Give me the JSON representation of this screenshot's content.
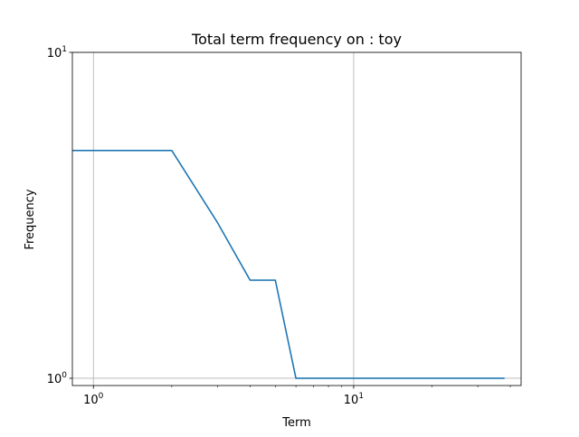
{
  "chart_data": {
    "type": "line",
    "title": "Total term frequency on : toy",
    "xlabel": "Term",
    "ylabel": "Frequency",
    "xscale": "log",
    "yscale": "log",
    "xlim": [
      0.83,
      44
    ],
    "ylim": [
      0.95,
      10
    ],
    "grid": true,
    "x_ticks": [
      {
        "value": 1,
        "base": "10",
        "exp": "0"
      },
      {
        "value": 10,
        "base": "10",
        "exp": "1"
      }
    ],
    "y_ticks": [
      {
        "value": 1,
        "base": "10",
        "exp": "0"
      },
      {
        "value": 10,
        "base": "10",
        "exp": "1"
      }
    ],
    "x": [
      0,
      1,
      2,
      3,
      4,
      5,
      6,
      7,
      8,
      9,
      10,
      11,
      12,
      13,
      14,
      15,
      16,
      17,
      18,
      19,
      20,
      21,
      22,
      23,
      24,
      25,
      26,
      27,
      28,
      29,
      30,
      31,
      32,
      33,
      34,
      35,
      36,
      37,
      38
    ],
    "series": [
      {
        "values": [
          5,
          5,
          5,
          3,
          2,
          2,
          1,
          1,
          1,
          1,
          1,
          1,
          1,
          1,
          1,
          1,
          1,
          1,
          1,
          1,
          1,
          1,
          1,
          1,
          1,
          1,
          1,
          1,
          1,
          1,
          1,
          1,
          1,
          1,
          1,
          1,
          1,
          1,
          1
        ],
        "color": "#1f77b4"
      }
    ]
  }
}
